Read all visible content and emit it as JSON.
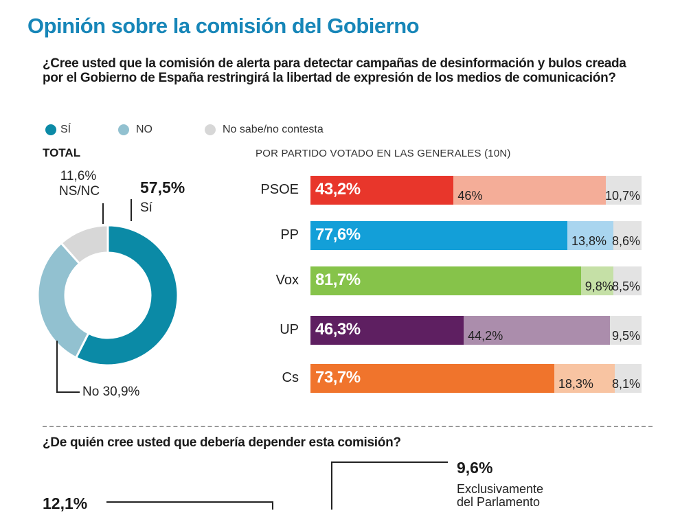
{
  "title": "Opinión sobre la comisión del Gobierno",
  "question": "¿Cree usted que la comisión de alerta para detectar campañas de desinformación y bulos creada por el Gobierno de España restringirá la libertad de expresión de los medios de comunicación?",
  "legend": [
    {
      "label": "SÍ",
      "color": "#0b8aa6"
    },
    {
      "label": "NO",
      "color": "#92c1d0"
    },
    {
      "label": "No sabe/no contesta",
      "color": "#d7d7d7"
    }
  ],
  "total_label": "TOTAL",
  "party_header": "POR PARTIDO VOTADO EN LAS GENERALES (10N)",
  "question2": "¿De quién cree usted que debería depender esta comisión?",
  "bottom": {
    "pct_right": "9,6%",
    "desc_right_1": "Exclusivamente",
    "desc_right_2": "del Parlamento",
    "pct_left": "12,1%"
  },
  "chart_data": [
    {
      "type": "pie",
      "title": "TOTAL",
      "categories": [
        "Sí",
        "No",
        "NS/NC"
      ],
      "values": [
        57.5,
        30.9,
        11.6
      ],
      "value_labels": [
        "57,5%",
        "No 30,9%",
        "11,6%"
      ],
      "slice_labels": [
        "Sí",
        "No",
        "NS/NC"
      ],
      "colors": [
        "#0b8aa6",
        "#92c1d0",
        "#d7d7d7"
      ]
    },
    {
      "type": "bar",
      "stacked": true,
      "orientation": "horizontal",
      "title": "POR PARTIDO VOTADO EN LAS GENERALES (10N)",
      "categories": [
        "PSOE",
        "PP",
        "Vox",
        "UP",
        "Cs"
      ],
      "series": [
        {
          "name": "SÍ",
          "values": [
            43.2,
            77.6,
            81.7,
            46.3,
            73.7
          ],
          "labels": [
            "43,2%",
            "77,6%",
            "81,7%",
            "46,3%",
            "73,7%"
          ]
        },
        {
          "name": "NO",
          "values": [
            46,
            13.8,
            9.8,
            44.2,
            18.3
          ],
          "labels": [
            "46%",
            "13,8%",
            "9,8%",
            "44,2%",
            "18,3%"
          ]
        },
        {
          "name": "No sabe/no contesta",
          "values": [
            10.7,
            8.6,
            8.5,
            9.5,
            8.1
          ],
          "labels": [
            "10,7%",
            "8,6%",
            "8,5%",
            "9,5%",
            "8,1%"
          ]
        }
      ],
      "party_colors": [
        {
          "yes": "#e8362b",
          "no": "#f4ad98",
          "ns": "#e3e3e3"
        },
        {
          "yes": "#139fd8",
          "no": "#a9d5ef",
          "ns": "#e3e3e3"
        },
        {
          "yes": "#86c34a",
          "no": "#c5e0a6",
          "ns": "#e3e3e3"
        },
        {
          "yes": "#5e1f61",
          "no": "#ab8dac",
          "ns": "#e3e3e3"
        },
        {
          "yes": "#f0742c",
          "no": "#f8c4a2",
          "ns": "#e3e3e3"
        }
      ],
      "xlim": [
        0,
        100
      ]
    }
  ]
}
